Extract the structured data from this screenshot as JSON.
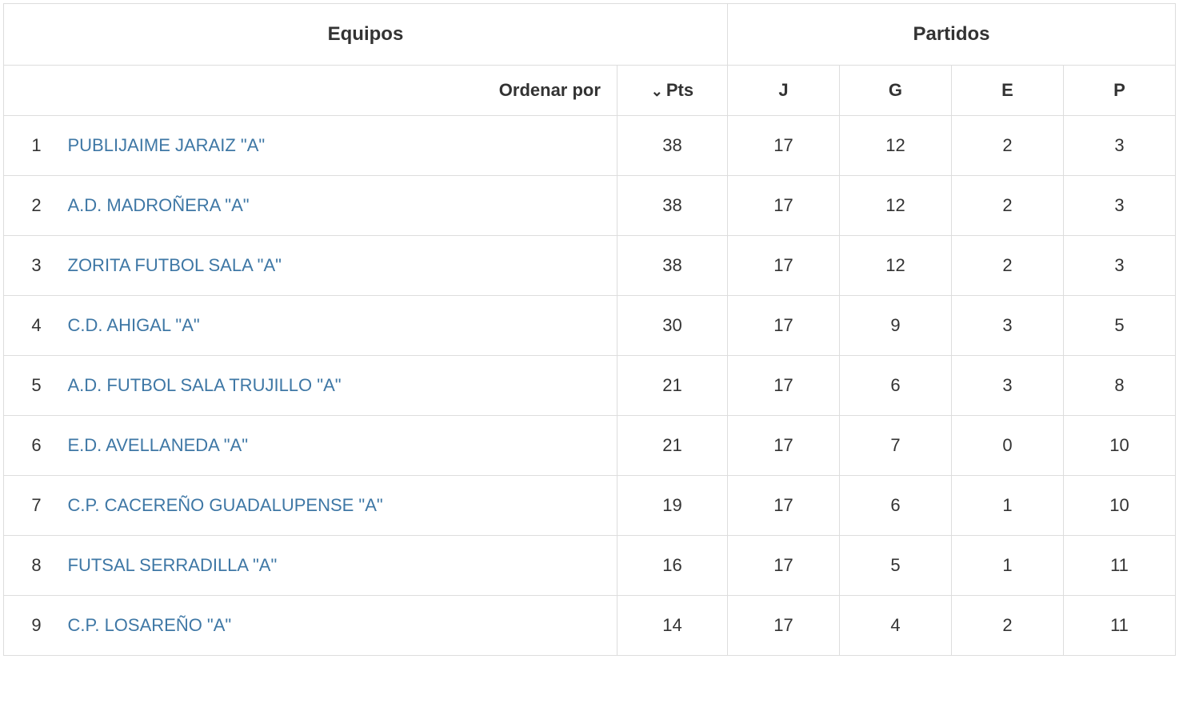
{
  "headers": {
    "group_equipos": "Equipos",
    "group_partidos": "Partidos",
    "sort_label": "Ordenar por",
    "pts": "Pts",
    "j": "J",
    "g": "G",
    "e": "E",
    "p": "P"
  },
  "styling": {
    "border_color": "#dddddd",
    "text_color": "#333333",
    "link_color": "#3e77a5",
    "background_color": "#ffffff",
    "header_fontsize": 24,
    "cell_fontsize": 22,
    "row_padding_v": 24
  },
  "rows": [
    {
      "rank": "1",
      "team": "PUBLIJAIME JARAIZ \"A\"",
      "pts": "38",
      "j": "17",
      "g": "12",
      "e": "2",
      "p": "3"
    },
    {
      "rank": "2",
      "team": "A.D. MADROÑERA \"A\"",
      "pts": "38",
      "j": "17",
      "g": "12",
      "e": "2",
      "p": "3"
    },
    {
      "rank": "3",
      "team": "ZORITA FUTBOL SALA \"A\"",
      "pts": "38",
      "j": "17",
      "g": "12",
      "e": "2",
      "p": "3"
    },
    {
      "rank": "4",
      "team": "C.D. AHIGAL \"A\"",
      "pts": "30",
      "j": "17",
      "g": "9",
      "e": "3",
      "p": "5"
    },
    {
      "rank": "5",
      "team": "A.D. FUTBOL SALA TRUJILLO \"A\"",
      "pts": "21",
      "j": "17",
      "g": "6",
      "e": "3",
      "p": "8"
    },
    {
      "rank": "6",
      "team": "E.D. AVELLANEDA \"A\"",
      "pts": "21",
      "j": "17",
      "g": "7",
      "e": "0",
      "p": "10"
    },
    {
      "rank": "7",
      "team": "C.P. CACEREÑO GUADALUPENSE \"A\"",
      "pts": "19",
      "j": "17",
      "g": "6",
      "e": "1",
      "p": "10"
    },
    {
      "rank": "8",
      "team": "FUTSAL SERRADILLA \"A\"",
      "pts": "16",
      "j": "17",
      "g": "5",
      "e": "1",
      "p": "11"
    },
    {
      "rank": "9",
      "team": "C.P. LOSAREÑO \"A\"",
      "pts": "14",
      "j": "17",
      "g": "4",
      "e": "2",
      "p": "11"
    }
  ]
}
